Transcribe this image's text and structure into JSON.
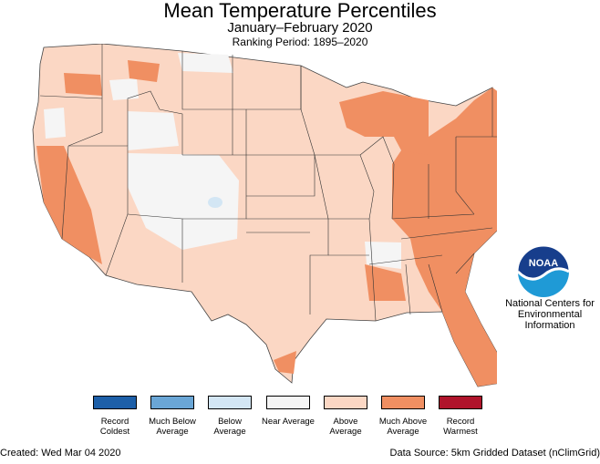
{
  "title": "Mean Temperature Percentiles",
  "subtitle": "January–February 2020",
  "ranking_period": "Ranking Period: 1895–2020",
  "legend": [
    {
      "label": "Record Coldest",
      "color": "#1d5fa8"
    },
    {
      "label": "Much Below Average",
      "color": "#6aa6d6"
    },
    {
      "label": "Below Average",
      "color": "#d3e6f4"
    },
    {
      "label": "Near Average",
      "color": "#f5f5f5"
    },
    {
      "label": "Above Average",
      "color": "#fbd7c4"
    },
    {
      "label": "Much Above Average",
      "color": "#f08f62"
    },
    {
      "label": "Record Warmest",
      "color": "#b0142b"
    }
  ],
  "logo": {
    "text": "NOAA",
    "colors": {
      "dark": "#173e8c",
      "light": "#1f9ad6"
    }
  },
  "organization": "National Centers for Environmental Information",
  "footer": {
    "created": "Created: Wed Mar 04 2020",
    "source": "Data Source: 5km Gridded Dataset (nClimGrid)"
  }
}
